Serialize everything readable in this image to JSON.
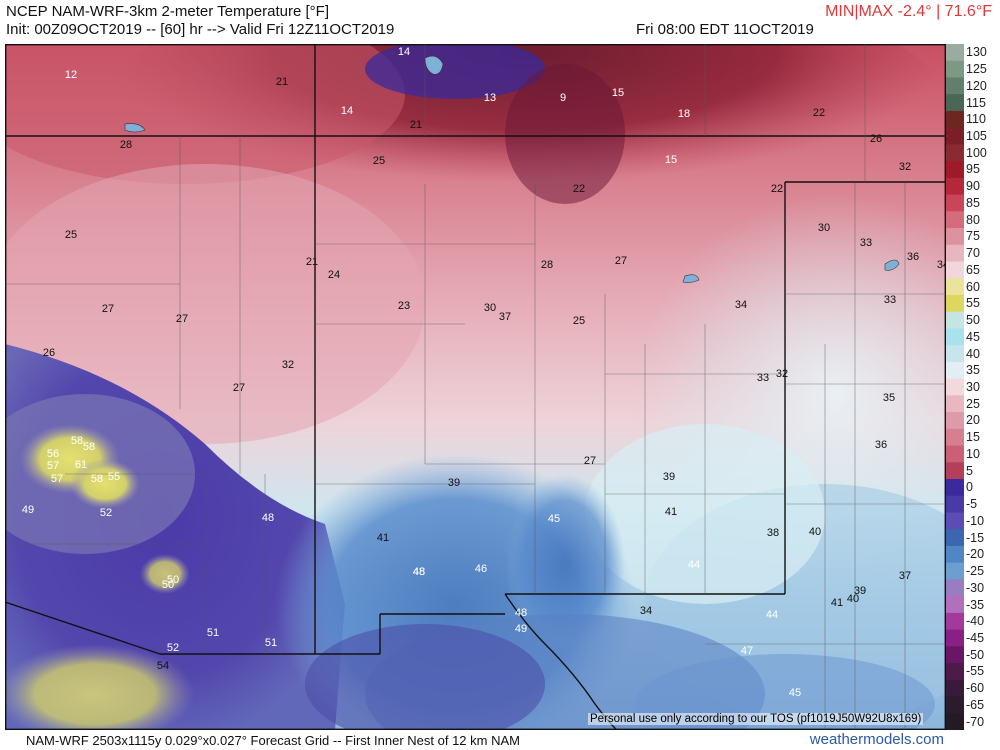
{
  "header": {
    "title": "NCEP NAM-WRF-3km 2-meter Temperature [°F]",
    "init": "Init: 00Z09OCT2019 -- [60] hr --> Valid Fri 12Z11OCT2019",
    "valid_local": "Fri 08:00 EDT 11OCT2019",
    "minmax": "MIN|MAX -2.4° | 71.6°F"
  },
  "footer": {
    "grid_info": "NAM-WRF 2503x1115y 0.029°x0.027° Forecast Grid -- First Inner Nest of 12 km NAM",
    "brand": "weathermodels.com",
    "tos": "Personal use only according to our TOS (pf1019J50W92U8x169)"
  },
  "colorbar": {
    "labels": [
      "130",
      "125",
      "120",
      "115",
      "110",
      "105",
      "100",
      "95",
      "90",
      "85",
      "80",
      "75",
      "70",
      "65",
      "60",
      "55",
      "50",
      "45",
      "40",
      "35",
      "30",
      "25",
      "20",
      "15",
      "10",
      "5",
      "0",
      "-5",
      "-10",
      "-15",
      "-20",
      "-25",
      "-30",
      "-35",
      "-40",
      "-45",
      "-50",
      "-55",
      "-60",
      "-65",
      "-70"
    ],
    "colors": [
      "#9aaba0",
      "#7e9886",
      "#627f6e",
      "#4b6657",
      "#6e2620",
      "#7a1f28",
      "#8c2a33",
      "#9e1a2a",
      "#b5273a",
      "#c8455a",
      "#d36d7c",
      "#de92a0",
      "#e8b6bf",
      "#f1d6db",
      "#ebe39a",
      "#ddd760",
      "#c6e4e2",
      "#a8e2ec",
      "#c7e5ec",
      "#e3eef2",
      "#f2d9de",
      "#e7b8c2",
      "#dd9aa8",
      "#d77f8f",
      "#cb5f75",
      "#b43f5b",
      "#3a2a9c",
      "#4a3aa8",
      "#5b4db3",
      "#3b67ae",
      "#4f87c5",
      "#6c9fd0",
      "#9a7dc0",
      "#b26fbc",
      "#a23a9c",
      "#8a1f86",
      "#6a1666",
      "#4d1a4a",
      "#3a1a3c",
      "#2c1a2d",
      "#241a24"
    ]
  },
  "map_values": [
    {
      "t": "12",
      "c": "light"
    },
    {
      "t": "21",
      "c": "dark"
    },
    {
      "t": "14",
      "c": "light"
    },
    {
      "t": "14",
      "c": "light"
    },
    {
      "t": "13",
      "c": "light"
    },
    {
      "t": "9",
      "c": "light"
    },
    {
      "t": "15",
      "c": "light"
    },
    {
      "t": "18",
      "c": "light"
    },
    {
      "t": "22",
      "c": "dark"
    },
    {
      "t": "28",
      "c": "dark"
    },
    {
      "t": "21",
      "c": "dark"
    },
    {
      "t": "25",
      "c": "dark"
    },
    {
      "t": "15",
      "c": "light"
    },
    {
      "t": "26",
      "c": "dark"
    },
    {
      "t": "32",
      "c": "dark"
    },
    {
      "t": "22",
      "c": "dark"
    },
    {
      "t": "22",
      "c": "dark"
    },
    {
      "t": "30",
      "c": "dark"
    },
    {
      "t": "33",
      "c": "dark"
    },
    {
      "t": "36",
      "c": "dark"
    },
    {
      "t": "34",
      "c": "dark"
    },
    {
      "t": "25",
      "c": "dark"
    },
    {
      "t": "21",
      "c": "dark"
    },
    {
      "t": "24",
      "c": "dark"
    },
    {
      "t": "28",
      "c": "dark"
    },
    {
      "t": "27",
      "c": "dark"
    },
    {
      "t": "33",
      "c": "dark"
    },
    {
      "t": "27",
      "c": "dark"
    },
    {
      "t": "27",
      "c": "dark"
    },
    {
      "t": "23",
      "c": "dark"
    },
    {
      "t": "30",
      "c": "dark"
    },
    {
      "t": "37",
      "c": "dark"
    },
    {
      "t": "25",
      "c": "dark"
    },
    {
      "t": "34",
      "c": "dark"
    },
    {
      "t": "26",
      "c": "dark"
    },
    {
      "t": "32",
      "c": "dark"
    },
    {
      "t": "33",
      "c": "dark"
    },
    {
      "t": "32",
      "c": "dark"
    },
    {
      "t": "27",
      "c": "dark"
    },
    {
      "t": "35",
      "c": "dark"
    },
    {
      "t": "36",
      "c": "dark"
    },
    {
      "t": "58",
      "c": "light"
    },
    {
      "t": "58",
      "c": "light"
    },
    {
      "t": "56",
      "c": "light"
    },
    {
      "t": "57",
      "c": "light"
    },
    {
      "t": "61",
      "c": "light"
    },
    {
      "t": "57",
      "c": "light"
    },
    {
      "t": "55",
      "c": "light"
    },
    {
      "t": "58",
      "c": "light"
    },
    {
      "t": "27",
      "c": "dark"
    },
    {
      "t": "39",
      "c": "dark"
    },
    {
      "t": "41",
      "c": "dark"
    },
    {
      "t": "49",
      "c": "light"
    },
    {
      "t": "52",
      "c": "light"
    },
    {
      "t": "48",
      "c": "light"
    },
    {
      "t": "48",
      "c": "light"
    },
    {
      "t": "45",
      "c": "light"
    },
    {
      "t": "41",
      "c": "dark"
    },
    {
      "t": "38",
      "c": "dark"
    },
    {
      "t": "40",
      "c": "dark"
    },
    {
      "t": "39",
      "c": "dark"
    },
    {
      "t": "48",
      "c": "light"
    },
    {
      "t": "46",
      "c": "light"
    },
    {
      "t": "44",
      "c": "light"
    },
    {
      "t": "37",
      "c": "dark"
    },
    {
      "t": "50",
      "c": "light"
    },
    {
      "t": "50",
      "c": "light"
    },
    {
      "t": "48",
      "c": "light"
    },
    {
      "t": "34",
      "c": "dark"
    },
    {
      "t": "44",
      "c": "light"
    },
    {
      "t": "39",
      "c": "dark"
    },
    {
      "t": "41",
      "c": "dark"
    },
    {
      "t": "40",
      "c": "dark"
    },
    {
      "t": "52",
      "c": "light"
    },
    {
      "t": "51",
      "c": "light"
    },
    {
      "t": "51",
      "c": "light"
    },
    {
      "t": "49",
      "c": "light"
    },
    {
      "t": "47",
      "c": "light"
    },
    {
      "t": "54",
      "c": "dark"
    },
    {
      "t": "45",
      "c": "light"
    }
  ]
}
